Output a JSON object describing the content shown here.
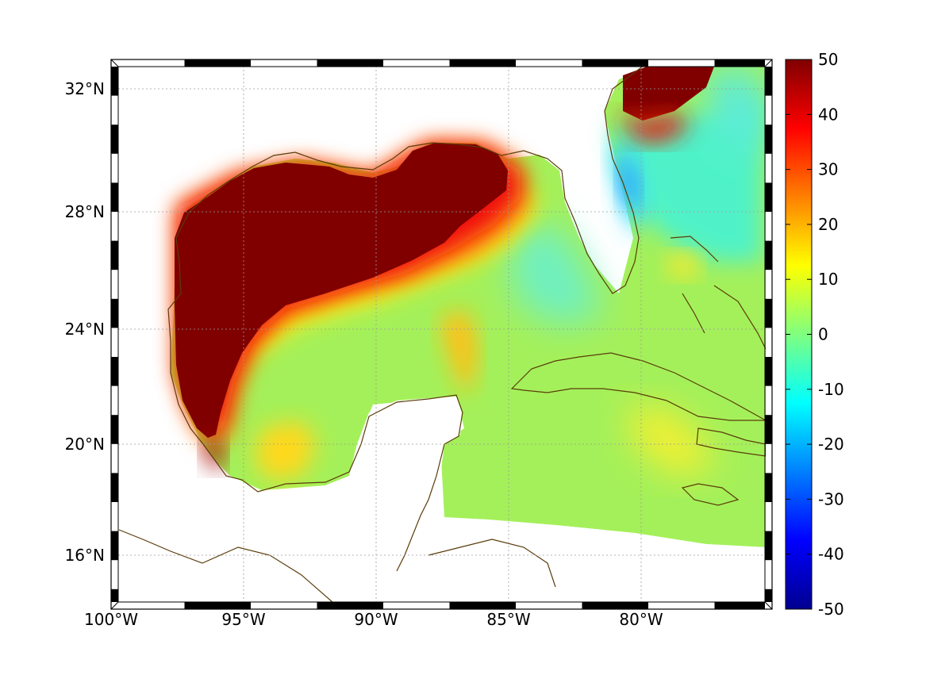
{
  "map": {
    "lon_range": [
      -100,
      -75
    ],
    "lat_range": [
      14.5,
      33
    ],
    "grid": true,
    "x_ticks": [
      {
        "value": -100,
        "label": "100°W"
      },
      {
        "value": -95,
        "label": "95°W"
      },
      {
        "value": -90,
        "label": "90°W"
      },
      {
        "value": -85,
        "label": "85°W"
      },
      {
        "value": -80,
        "label": "80°W"
      }
    ],
    "y_ticks": [
      {
        "value": 16,
        "label": "16°N"
      },
      {
        "value": 20,
        "label": "20°N"
      },
      {
        "value": 24,
        "label": "24°N"
      },
      {
        "value": 28,
        "label": "28°N"
      },
      {
        "value": 32,
        "label": "32°N"
      }
    ],
    "colormap": "jet",
    "coastline_color": "#5a3c0a",
    "saturated_color": "#800000"
  },
  "colorbar": {
    "min": -50,
    "max": 50,
    "placement": "right",
    "ticks": [
      {
        "value": 50,
        "label": "50"
      },
      {
        "value": 40,
        "label": "40"
      },
      {
        "value": 30,
        "label": "30"
      },
      {
        "value": 20,
        "label": "20"
      },
      {
        "value": 10,
        "label": "10"
      },
      {
        "value": 0,
        "label": "0"
      },
      {
        "value": -10,
        "label": "-10"
      },
      {
        "value": -20,
        "label": "-20"
      },
      {
        "value": -30,
        "label": "-30"
      },
      {
        "value": -40,
        "label": "-40"
      },
      {
        "value": -50,
        "label": "-50"
      }
    ]
  }
}
